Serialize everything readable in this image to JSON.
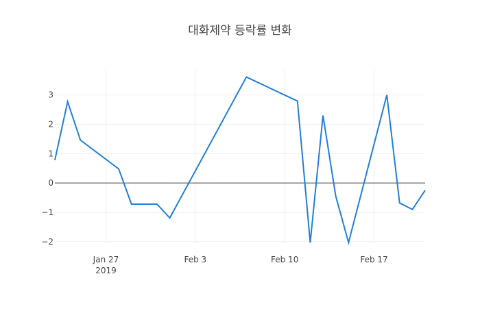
{
  "chart_data": {
    "type": "line",
    "title": "대화제약 등락률 변화",
    "xlabel": "",
    "ylabel": "",
    "x_ticks": [
      {
        "label": "Jan 27",
        "sublabel": "2019",
        "date": "2019-01-27"
      },
      {
        "label": "Feb 3",
        "sublabel": "",
        "date": "2019-02-03"
      },
      {
        "label": "Feb 10",
        "sublabel": "",
        "date": "2019-02-10"
      },
      {
        "label": "Feb 17",
        "sublabel": "",
        "date": "2019-02-17"
      }
    ],
    "y_ticks": [
      {
        "label": "3",
        "value": 3
      },
      {
        "label": "2",
        "value": 2
      },
      {
        "label": "1",
        "value": 1
      },
      {
        "label": "0",
        "value": 0
      },
      {
        "label": "−1",
        "value": -1
      },
      {
        "label": "−2",
        "value": -2
      }
    ],
    "xlim": [
      "2019-01-23",
      "2019-02-21"
    ],
    "ylim": [
      -2.05,
      3.9
    ],
    "grid": true,
    "line_color": "#1f7fdc",
    "series": [
      {
        "x": [
          "2019-01-23",
          "2019-01-24",
          "2019-01-25",
          "2019-01-28",
          "2019-01-29",
          "2019-01-30",
          "2019-01-31",
          "2019-02-01",
          "2019-02-07",
          "2019-02-11",
          "2019-02-12",
          "2019-02-13",
          "2019-02-14",
          "2019-02-15",
          "2019-02-18",
          "2019-02-19",
          "2019-02-20",
          "2019-02-21"
        ],
        "y": [
          0.78,
          2.77,
          1.46,
          0.48,
          -0.72,
          -0.72,
          -0.72,
          -1.19,
          3.61,
          2.79,
          -2.03,
          2.3,
          -0.45,
          -2.03,
          3.0,
          -0.68,
          -0.9,
          -0.25
        ]
      }
    ]
  }
}
